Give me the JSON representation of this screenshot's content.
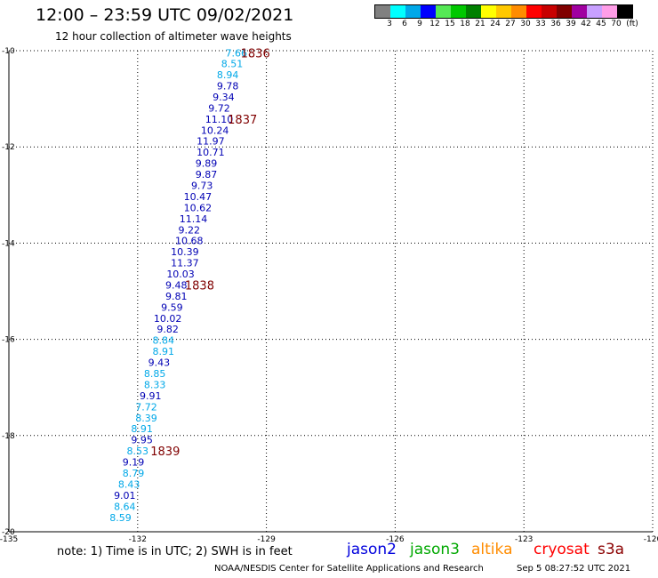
{
  "header": {
    "title": "12:00 – 23:59 UTC 09/02/2021",
    "subtitle": "12 hour collection of altimeter wave heights"
  },
  "colorbar": {
    "ticks": [
      "3",
      "6",
      "9",
      "12",
      "15",
      "18",
      "21",
      "24",
      "27",
      "30",
      "33",
      "36",
      "39",
      "42",
      "45",
      "70"
    ],
    "unit": "(ft)",
    "colors": [
      "#808080",
      "#00ffff",
      "#00a8e8",
      "#0000ff",
      "#55e855",
      "#00c800",
      "#008000",
      "#ffff00",
      "#ffc800",
      "#ff8c00",
      "#ff0000",
      "#c80000",
      "#800000",
      "#a000a0",
      "#c8a0ff",
      "#ff9ee8",
      "#000000"
    ]
  },
  "footer": {
    "note": "note: 1) Time is in UTC; 2) SWH is in feet",
    "legend": [
      {
        "name": "jason2",
        "color": "#0000dd"
      },
      {
        "name": "jason3",
        "color": "#00a800"
      },
      {
        "name": "altika",
        "color": "#ff8c00"
      },
      {
        "name": "cryosat",
        "color": "#ff0000"
      },
      {
        "name": "s3a",
        "color": "#8b0000"
      }
    ],
    "credit": "NOAA/NESDIS Center for Satellite Applications and Research",
    "timestamp": "Sep  5 08:27:52 UTC 2021"
  },
  "chart_data": {
    "type": "scatter",
    "xlim": [
      -135,
      -120
    ],
    "ylim": [
      -20,
      -10
    ],
    "x_ticks": [
      -135,
      -132,
      -129,
      -126,
      -123,
      -120
    ],
    "y_ticks": [
      -10,
      -12,
      -14,
      -16,
      -18,
      -20
    ],
    "x_tick_labels": [
      "-135",
      "-132",
      "-129",
      "-126",
      "-123",
      "-120"
    ],
    "y_tick_labels": [
      "-10",
      "-12",
      "-14",
      "-16",
      "-18",
      "-20"
    ],
    "grid": true,
    "colors": {
      "dark_blue": "#0000b4",
      "light_blue": "#00a8e8",
      "time_label": "#800000"
    },
    "points": [
      {
        "x": -129.7,
        "y": -10.05,
        "value": "7.66",
        "color": "light_blue"
      },
      {
        "x": -129.8,
        "y": -10.27,
        "value": "8.51",
        "color": "light_blue"
      },
      {
        "x": -129.9,
        "y": -10.5,
        "value": "8.94",
        "color": "light_blue"
      },
      {
        "x": -129.9,
        "y": -10.73,
        "value": "9.78",
        "color": "dark_blue"
      },
      {
        "x": -130.0,
        "y": -10.96,
        "value": "9.34",
        "color": "dark_blue"
      },
      {
        "x": -130.1,
        "y": -11.19,
        "value": "9.72",
        "color": "dark_blue"
      },
      {
        "x": -130.1,
        "y": -11.42,
        "value": "11.10",
        "color": "dark_blue"
      },
      {
        "x": -130.2,
        "y": -11.65,
        "value": "10.24",
        "color": "dark_blue"
      },
      {
        "x": -130.3,
        "y": -11.88,
        "value": "11.97",
        "color": "dark_blue"
      },
      {
        "x": -130.3,
        "y": -12.11,
        "value": "10.71",
        "color": "dark_blue"
      },
      {
        "x": -130.4,
        "y": -12.34,
        "value": "9.89",
        "color": "dark_blue"
      },
      {
        "x": -130.4,
        "y": -12.57,
        "value": "9.87",
        "color": "dark_blue"
      },
      {
        "x": -130.5,
        "y": -12.8,
        "value": "9.73",
        "color": "dark_blue"
      },
      {
        "x": -130.6,
        "y": -13.03,
        "value": "10.47",
        "color": "dark_blue"
      },
      {
        "x": -130.6,
        "y": -13.26,
        "value": "10.62",
        "color": "dark_blue"
      },
      {
        "x": -130.7,
        "y": -13.49,
        "value": "11.14",
        "color": "dark_blue"
      },
      {
        "x": -130.8,
        "y": -13.72,
        "value": "9.22",
        "color": "dark_blue"
      },
      {
        "x": -130.8,
        "y": -13.95,
        "value": "10.68",
        "color": "dark_blue"
      },
      {
        "x": -130.9,
        "y": -14.18,
        "value": "10.39",
        "color": "dark_blue"
      },
      {
        "x": -130.9,
        "y": -14.41,
        "value": "11.37",
        "color": "dark_blue"
      },
      {
        "x": -131.0,
        "y": -14.64,
        "value": "10.03",
        "color": "dark_blue"
      },
      {
        "x": -131.1,
        "y": -14.87,
        "value": "9.48",
        "color": "dark_blue"
      },
      {
        "x": -131.1,
        "y": -15.1,
        "value": "9.81",
        "color": "dark_blue"
      },
      {
        "x": -131.2,
        "y": -15.33,
        "value": "9.59",
        "color": "dark_blue"
      },
      {
        "x": -131.3,
        "y": -15.56,
        "value": "10.02",
        "color": "dark_blue"
      },
      {
        "x": -131.3,
        "y": -15.79,
        "value": "9.82",
        "color": "dark_blue"
      },
      {
        "x": -131.4,
        "y": -16.02,
        "value": "8.84",
        "color": "light_blue"
      },
      {
        "x": -131.4,
        "y": -16.25,
        "value": "8.91",
        "color": "light_blue"
      },
      {
        "x": -131.5,
        "y": -16.48,
        "value": "9.43",
        "color": "dark_blue"
      },
      {
        "x": -131.6,
        "y": -16.71,
        "value": "8.85",
        "color": "light_blue"
      },
      {
        "x": -131.6,
        "y": -16.94,
        "value": "8.33",
        "color": "light_blue"
      },
      {
        "x": -131.7,
        "y": -17.17,
        "value": "9.91",
        "color": "dark_blue"
      },
      {
        "x": -131.8,
        "y": -17.4,
        "value": "7.72",
        "color": "light_blue"
      },
      {
        "x": -131.8,
        "y": -17.63,
        "value": "8.39",
        "color": "light_blue"
      },
      {
        "x": -131.9,
        "y": -17.86,
        "value": "8.91",
        "color": "light_blue"
      },
      {
        "x": -131.9,
        "y": -18.09,
        "value": "9.95",
        "color": "dark_blue"
      },
      {
        "x": -132.0,
        "y": -18.32,
        "value": "8.53",
        "color": "light_blue"
      },
      {
        "x": -132.1,
        "y": -18.55,
        "value": "9.19",
        "color": "dark_blue"
      },
      {
        "x": -132.1,
        "y": -18.78,
        "value": "8.79",
        "color": "light_blue"
      },
      {
        "x": -132.2,
        "y": -19.01,
        "value": "8.43",
        "color": "light_blue"
      },
      {
        "x": -132.3,
        "y": -19.24,
        "value": "9.01",
        "color": "dark_blue"
      },
      {
        "x": -132.3,
        "y": -19.47,
        "value": "8.64",
        "color": "light_blue"
      },
      {
        "x": -132.4,
        "y": -19.7,
        "value": "8.59",
        "color": "light_blue"
      }
    ],
    "time_labels": [
      {
        "x": -129.6,
        "y": -10.05,
        "text": "1836"
      },
      {
        "x": -129.9,
        "y": -11.42,
        "text": "1837"
      },
      {
        "x": -130.9,
        "y": -14.87,
        "text": "1838"
      },
      {
        "x": -131.7,
        "y": -18.32,
        "text": "1839"
      }
    ]
  }
}
